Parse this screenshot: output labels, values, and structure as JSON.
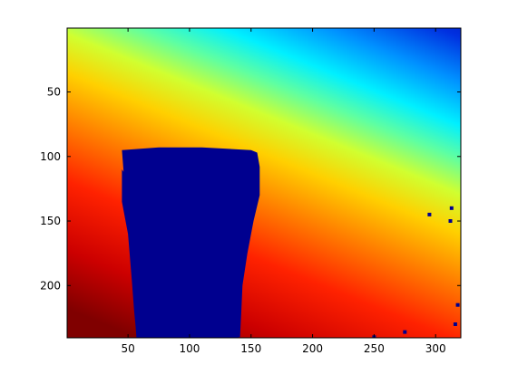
{
  "chart_data": {
    "type": "heatmap",
    "title": "",
    "xlabel": "",
    "ylabel": "",
    "xlim": [
      0.5,
      320.5
    ],
    "ylim": [
      0.5,
      240.5
    ],
    "y_axis_reversed": true,
    "x_ticks": [
      50,
      100,
      150,
      200,
      250,
      300
    ],
    "y_ticks": [
      50,
      100,
      150,
      200
    ],
    "x_tick_labels": [
      "50",
      "100",
      "150",
      "200",
      "250",
      "300"
    ],
    "y_tick_labels": [
      "50",
      "100",
      "150",
      "200"
    ],
    "colormap": "jet",
    "color_range": [
      "#00008f",
      "#800000"
    ],
    "background_gradient": "depth increases from top-right (blue) to bottom-left (dark red) along diagonal bands",
    "occluding_object": {
      "color": "#00008f",
      "outline": [
        [
          45,
          95
        ],
        [
          75,
          93
        ],
        [
          110,
          93
        ],
        [
          150,
          95
        ],
        [
          155,
          97
        ],
        [
          157,
          108
        ],
        [
          157,
          130
        ],
        [
          152,
          150
        ],
        [
          147,
          175
        ],
        [
          143,
          200
        ],
        [
          142,
          222
        ],
        [
          141,
          240
        ],
        [
          57,
          240
        ],
        [
          55,
          220
        ],
        [
          53,
          195
        ],
        [
          50,
          160
        ],
        [
          45,
          135
        ],
        [
          45,
          110
        ]
      ]
    },
    "noise_points": [
      [
        295,
        145
      ],
      [
        312,
        150
      ],
      [
        313,
        140
      ],
      [
        318,
        215
      ],
      [
        316,
        230
      ],
      [
        250,
        240
      ],
      [
        275,
        236
      ]
    ],
    "grid": false,
    "legend": "none"
  }
}
